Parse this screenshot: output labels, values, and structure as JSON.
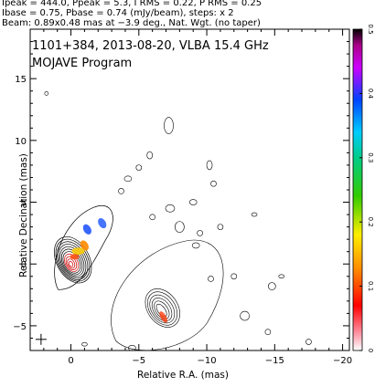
{
  "header": {
    "line1": "Ipeak = 444.0, Ppeak = 5.3, I RMS = 0.22, P RMS = 0.25",
    "line2": "Ibase = 0.75, Pbase = 0.74 (mJy/beam), steps: x 2",
    "line3": "Beam: 0.89x0.48 mas at −3.9 deg., Nat. Wgt. (no taper)"
  },
  "chart_data": {
    "type": "contour",
    "title": "1101+384, 2013-08-20, VLBA 15.4 GHz",
    "subtitle": "MOJAVE Program",
    "xlabel": "Relative R.A. (mas)",
    "ylabel": "Relative Decination (mas)",
    "xlim": [
      3,
      -20.5
    ],
    "ylim": [
      -7,
      19
    ],
    "x_ticks": [
      0,
      -5,
      -10,
      -15,
      -20
    ],
    "x_tick_labels": [
      "0",
      "−5",
      "−10",
      "−15",
      "−20"
    ],
    "y_ticks": [
      -5,
      0,
      5,
      10,
      15
    ],
    "y_tick_labels": [
      "−5",
      "0",
      "5",
      "10",
      "15"
    ],
    "colorbar": {
      "ticks": [
        0,
        0.1,
        0.2,
        0.3,
        0.4,
        0.5
      ],
      "tick_labels": [
        "0",
        "0.1",
        "0.2",
        "0.3",
        "0.4",
        "0.5"
      ],
      "range": [
        0,
        0.5
      ]
    },
    "core": {
      "x": 0,
      "y": 0
    },
    "jet_features": [
      {
        "x": -1.0,
        "y": 1.5,
        "color": "#ff8800"
      },
      {
        "x": -1.2,
        "y": 2.8,
        "color": "#2255ff"
      },
      {
        "x": -2.3,
        "y": 3.3,
        "color": "#3366ff"
      }
    ],
    "extended_lobe": {
      "x": -6.0,
      "y": -4.0
    }
  }
}
